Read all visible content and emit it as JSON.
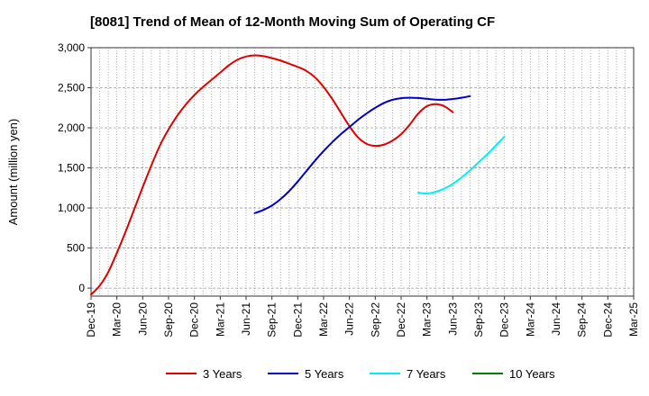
{
  "chart_data": {
    "type": "line",
    "title": "[8081]  Trend of Mean of 12-Month Moving Sum of Operating CF",
    "xlabel": "",
    "ylabel": "Amount (million yen)",
    "ylim": [
      -100,
      3000
    ],
    "y_ticks": [
      0,
      500,
      1000,
      1500,
      2000,
      2500,
      3000
    ],
    "y_tick_labels": [
      "0",
      "500",
      "1,000",
      "1,500",
      "2,000",
      "2,500",
      "3,000"
    ],
    "x_range_months": [
      "2019-12",
      "2025-03"
    ],
    "x_tick_labels": [
      "Dec-19",
      "Mar-20",
      "Jun-20",
      "Sep-20",
      "Dec-20",
      "Mar-21",
      "Jun-21",
      "Sep-21",
      "Dec-21",
      "Mar-22",
      "Jun-22",
      "Sep-22",
      "Dec-22",
      "Mar-23",
      "Jun-23",
      "Sep-23",
      "Dec-23",
      "Mar-24",
      "Jun-24",
      "Sep-24",
      "Dec-24",
      "Mar-25"
    ],
    "grid": true,
    "legend_position": "bottom",
    "series": [
      {
        "name": "3 Years",
        "color": "#e00000",
        "points": [
          [
            "2019-12",
            -80
          ],
          [
            "2020-01",
            30
          ],
          [
            "2020-02",
            200
          ],
          [
            "2020-03",
            440
          ],
          [
            "2020-04",
            700
          ],
          [
            "2020-05",
            980
          ],
          [
            "2020-06",
            1260
          ],
          [
            "2020-07",
            1530
          ],
          [
            "2020-08",
            1780
          ],
          [
            "2020-09",
            1980
          ],
          [
            "2020-10",
            2150
          ],
          [
            "2020-11",
            2290
          ],
          [
            "2020-12",
            2410
          ],
          [
            "2021-01",
            2510
          ],
          [
            "2021-02",
            2600
          ],
          [
            "2021-03",
            2690
          ],
          [
            "2021-04",
            2780
          ],
          [
            "2021-05",
            2850
          ],
          [
            "2021-06",
            2890
          ],
          [
            "2021-07",
            2905
          ],
          [
            "2021-08",
            2895
          ],
          [
            "2021-09",
            2870
          ],
          [
            "2021-10",
            2840
          ],
          [
            "2021-11",
            2800
          ],
          [
            "2021-12",
            2760
          ],
          [
            "2022-01",
            2710
          ],
          [
            "2022-02",
            2630
          ],
          [
            "2022-03",
            2510
          ],
          [
            "2022-04",
            2360
          ],
          [
            "2022-05",
            2190
          ],
          [
            "2022-06",
            2020
          ],
          [
            "2022-07",
            1880
          ],
          [
            "2022-08",
            1800
          ],
          [
            "2022-09",
            1775
          ],
          [
            "2022-10",
            1790
          ],
          [
            "2022-11",
            1840
          ],
          [
            "2022-12",
            1920
          ],
          [
            "2023-01",
            2040
          ],
          [
            "2023-02",
            2180
          ],
          [
            "2023-03",
            2270
          ],
          [
            "2023-04",
            2295
          ],
          [
            "2023-05",
            2270
          ],
          [
            "2023-06",
            2195
          ]
        ]
      },
      {
        "name": "5 Years",
        "color": "#0000c8",
        "points": [
          [
            "2021-07",
            935
          ],
          [
            "2021-08",
            975
          ],
          [
            "2021-09",
            1030
          ],
          [
            "2021-10",
            1110
          ],
          [
            "2021-11",
            1210
          ],
          [
            "2021-12",
            1330
          ],
          [
            "2022-01",
            1460
          ],
          [
            "2022-02",
            1590
          ],
          [
            "2022-03",
            1710
          ],
          [
            "2022-04",
            1820
          ],
          [
            "2022-05",
            1920
          ],
          [
            "2022-06",
            2010
          ],
          [
            "2022-07",
            2100
          ],
          [
            "2022-08",
            2180
          ],
          [
            "2022-09",
            2250
          ],
          [
            "2022-10",
            2310
          ],
          [
            "2022-11",
            2350
          ],
          [
            "2022-12",
            2370
          ],
          [
            "2023-01",
            2375
          ],
          [
            "2023-02",
            2372
          ],
          [
            "2023-03",
            2362
          ],
          [
            "2023-04",
            2352
          ],
          [
            "2023-05",
            2350
          ],
          [
            "2023-06",
            2360
          ],
          [
            "2023-07",
            2375
          ],
          [
            "2023-08",
            2395
          ]
        ]
      },
      {
        "name": "7 Years",
        "color": "#00f0f0",
        "points": [
          [
            "2023-02",
            1190
          ],
          [
            "2023-03",
            1180
          ],
          [
            "2023-04",
            1200
          ],
          [
            "2023-05",
            1240
          ],
          [
            "2023-06",
            1300
          ],
          [
            "2023-07",
            1380
          ],
          [
            "2023-08",
            1470
          ],
          [
            "2023-09",
            1570
          ],
          [
            "2023-10",
            1670
          ],
          [
            "2023-11",
            1780
          ],
          [
            "2023-12",
            1890
          ]
        ]
      },
      {
        "name": "10 Years",
        "color": "#008000",
        "points": []
      }
    ]
  }
}
